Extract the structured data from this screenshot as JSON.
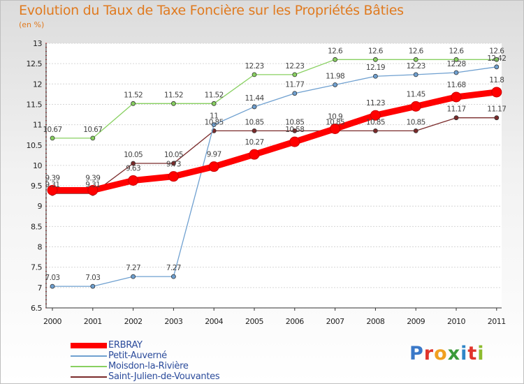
{
  "title": "Evolution du Taux de Taxe Foncière sur les Propriétés Bâties",
  "subtitle": "(en %)",
  "logo": {
    "letters": [
      "P",
      "r",
      "o",
      "x",
      "i",
      "t",
      "i"
    ],
    "colors": [
      "#3a78c8",
      "#e0342c",
      "#f0a020",
      "#3a9a3a",
      "#2f86c8",
      "#e0342c",
      "#8dbb2e"
    ]
  },
  "chart_data": {
    "type": "line",
    "title": "Evolution du Taux de Taxe Foncière sur les Propriétés Bâties",
    "ylabel": "(en %)",
    "xlabel": "",
    "ylim": [
      6.5,
      13
    ],
    "yticks": [
      "6.5",
      "7",
      "7.5",
      "8",
      "8.5",
      "9",
      "9.5",
      "10",
      "10.5",
      "11",
      "11.5",
      "12",
      "12.5",
      "13"
    ],
    "x": [
      "2000",
      "2001",
      "2002",
      "2003",
      "2004",
      "2005",
      "2006",
      "2007",
      "2008",
      "2009",
      "2010",
      "2011"
    ],
    "series": [
      {
        "name": "ERBRAY",
        "color": "#ff0000",
        "width": 9,
        "marker": 7,
        "values": [
          9.39,
          9.39,
          9.63,
          9.73,
          9.97,
          10.27,
          10.58,
          10.9,
          11.23,
          11.45,
          11.68,
          11.8
        ],
        "labels": [
          "9.39",
          "9.39",
          "9.63",
          "9.73",
          "9.97",
          "10.27",
          "10.58",
          "10.9",
          "11.23",
          "11.45",
          "11.68",
          "11.8"
        ]
      },
      {
        "name": "Petit-Auverné",
        "color": "#6fa0d0",
        "width": 1.3,
        "marker": 3,
        "values": [
          7.03,
          7.03,
          7.27,
          7.27,
          11.0,
          11.44,
          11.77,
          11.98,
          12.19,
          12.23,
          12.28,
          12.42
        ],
        "labels": [
          "7.03",
          "7.03",
          "7.27",
          "7.27",
          "11",
          "11.44",
          "11.77",
          "11.98",
          "12.19",
          "12.23",
          "12.28",
          "12.42"
        ]
      },
      {
        "name": "Moisdon-la-Rivière",
        "color": "#88d060",
        "width": 1.3,
        "marker": 3,
        "values": [
          10.67,
          10.67,
          11.52,
          11.52,
          11.52,
          12.23,
          12.23,
          12.6,
          12.6,
          12.6,
          12.6,
          12.6
        ],
        "labels": [
          "10.67",
          "10.67",
          "11.52",
          "11.52",
          "11.52",
          "12.23",
          "12.23",
          "12.6",
          "12.6",
          "12.6",
          "12.6",
          "12.6"
        ]
      },
      {
        "name": "Saint-Julien-de-Vouvantes",
        "color": "#7a2a2a",
        "width": 1.3,
        "marker": 3,
        "values": [
          9.31,
          9.31,
          10.05,
          10.05,
          10.85,
          10.85,
          10.85,
          10.85,
          10.85,
          10.85,
          11.17,
          11.17
        ],
        "labels": [
          "9.31",
          "9.31",
          "10.05",
          "10.05",
          "10.85",
          "10.85",
          "10.85",
          "10.85",
          "10.85",
          "10.85",
          "11.17",
          "11.17"
        ]
      }
    ]
  }
}
